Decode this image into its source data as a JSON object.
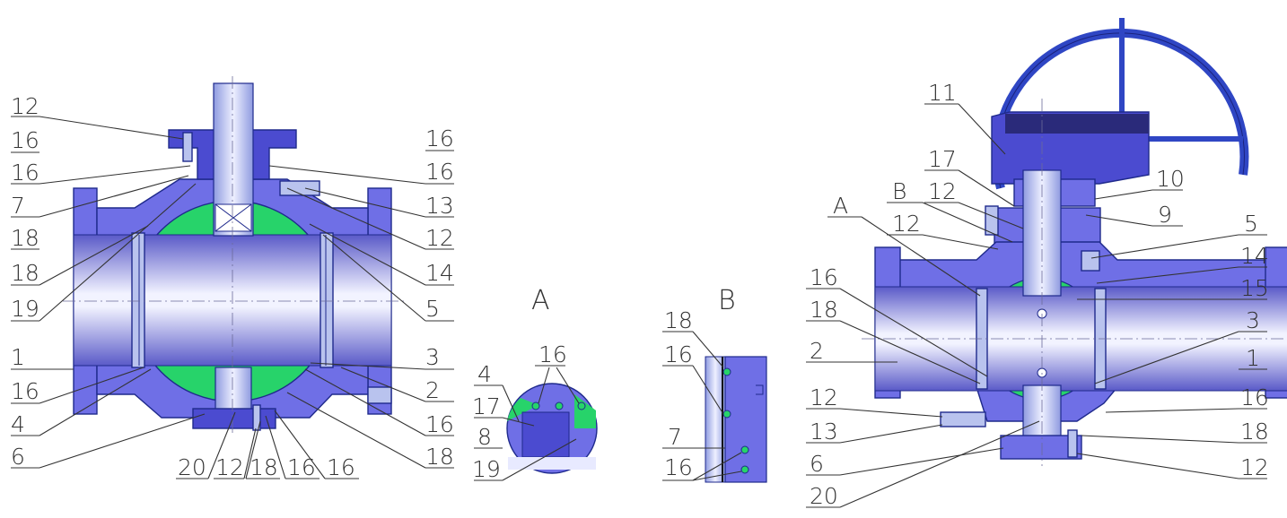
{
  "colors": {
    "body": "#6f6fe6",
    "body_dark": "#4b4bd0",
    "bore_light": "#f2f3ff",
    "bore_dark": "#5a5ac8",
    "ball": "#27d36a",
    "stem": "#b9c3ee",
    "handwheel": "#2f46c4",
    "leader": "#333333"
  },
  "views": {
    "left": {
      "labels_left": [
        "12",
        "16",
        "16",
        "7",
        "18",
        "18",
        "19",
        "1",
        "16",
        "4",
        "6"
      ],
      "labels_right": [
        "16",
        "16",
        "13",
        "12",
        "14",
        "5",
        "3",
        "2",
        "16",
        "18"
      ],
      "labels_bottom": [
        "20",
        "12",
        "18",
        "16",
        "16"
      ]
    },
    "detail_a": {
      "title": "A",
      "labels": [
        "4",
        "16",
        "17",
        "8",
        "19"
      ]
    },
    "detail_b": {
      "title": "B",
      "labels": [
        "18",
        "16",
        "7",
        "16"
      ]
    },
    "right": {
      "labels_left": [
        "11",
        "17",
        "12",
        "B",
        "A",
        "12",
        "16",
        "18",
        "2",
        "12",
        "13",
        "6",
        "20"
      ],
      "labels_right": [
        "10",
        "9",
        "5",
        "14",
        "15",
        "3",
        "1",
        "16",
        "18",
        "12"
      ]
    }
  }
}
